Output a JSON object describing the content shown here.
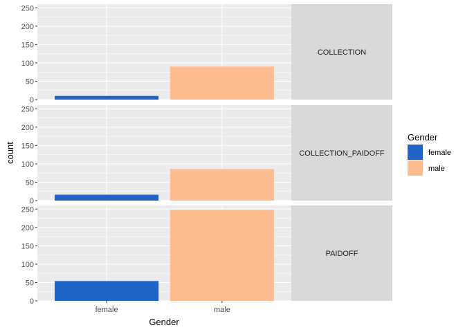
{
  "chart_data": {
    "type": "bar",
    "facet_by": "row",
    "categories": [
      "female",
      "male"
    ],
    "xlabel": "Gender",
    "ylabel": "count",
    "ylim": [
      0,
      260
    ],
    "yticks": [
      0,
      50,
      100,
      150,
      200,
      250
    ],
    "grid": true,
    "legend": {
      "title": "Gender",
      "position": "right",
      "entries": [
        {
          "label": "female",
          "color": "#1f63c6"
        },
        {
          "label": "male",
          "color": "#fdbd91"
        }
      ]
    },
    "panels": [
      {
        "strip": "COLLECTION",
        "values": [
          10,
          90
        ]
      },
      {
        "strip": "COLLECTION_PAIDOFF",
        "values": [
          16,
          86
        ]
      },
      {
        "strip": "PAIDOFF",
        "values": [
          54,
          248
        ]
      }
    ]
  },
  "colors": {
    "panel_background": "#ebebeb",
    "grid": "#ffffff",
    "strip_background": "#d9d9d9",
    "female": "#1f63c6",
    "male": "#fdbd91"
  }
}
